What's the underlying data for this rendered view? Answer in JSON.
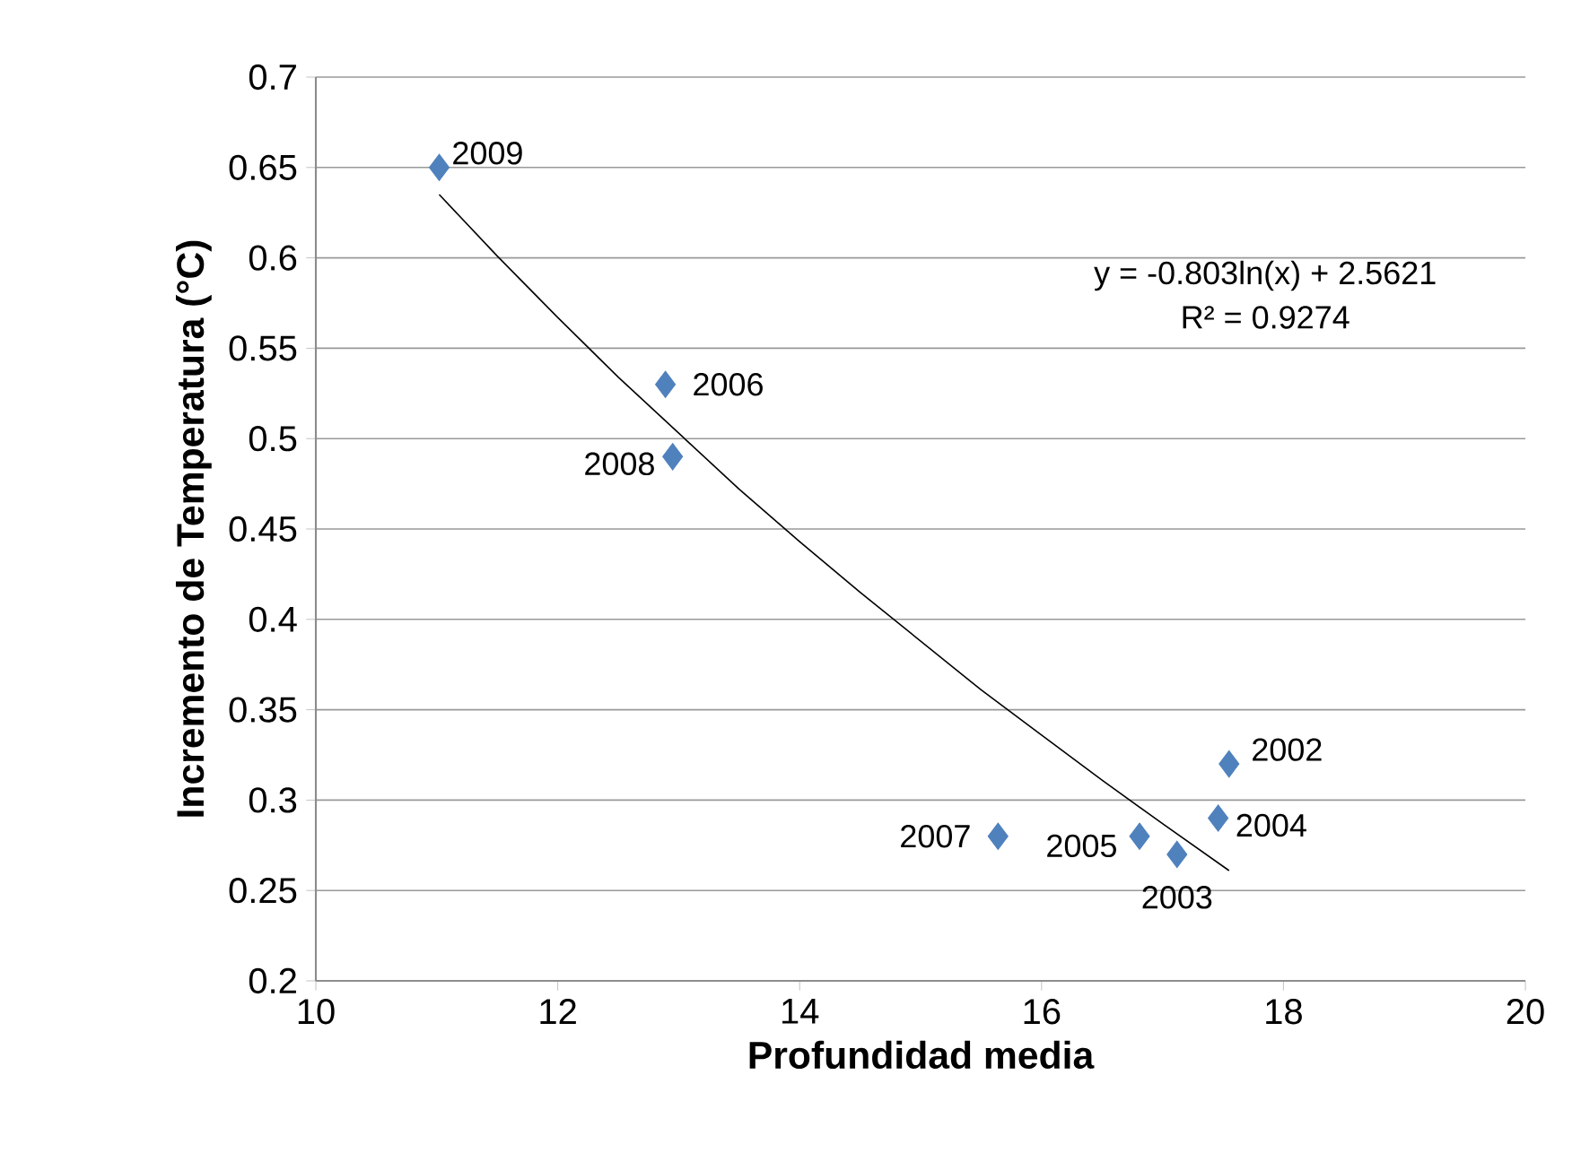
{
  "chart_data": {
    "type": "scatter",
    "xlabel": "Profundidad media",
    "ylabel": "Incremento de Temperatura (°C)",
    "xlim": [
      10,
      20
    ],
    "ylim": [
      0.2,
      0.7
    ],
    "xticks": [
      10,
      12,
      14,
      16,
      18,
      20
    ],
    "yticks": [
      0.2,
      0.25,
      0.3,
      0.35,
      0.4,
      0.45,
      0.5,
      0.55,
      0.6,
      0.65,
      0.7
    ],
    "grid": "y",
    "series": [
      {
        "marker": "diamond",
        "color": "#4f81bd",
        "x": [
          11.02,
          12.89,
          12.95,
          15.64,
          16.81,
          17.12,
          17.46,
          17.55
        ],
        "values": [
          0.65,
          0.53,
          0.49,
          0.28,
          0.28,
          0.27,
          0.29,
          0.32
        ]
      },
      {
        "type": "line",
        "color": "#000000",
        "line_style": "solid",
        "x": [
          11.02,
          11.5,
          12,
          12.5,
          13,
          13.5,
          14,
          14.5,
          15,
          15.5,
          16,
          16.5,
          17,
          17.55
        ],
        "values": [
          0.635,
          0.601,
          0.567,
          0.534,
          0.503,
          0.472,
          0.443,
          0.415,
          0.388,
          0.361,
          0.336,
          0.311,
          0.287,
          0.261
        ]
      }
    ],
    "annotations": [
      {
        "text": "2009",
        "x": 11.02,
        "y": 0.65
      },
      {
        "text": "2006",
        "x": 12.89,
        "y": 0.53
      },
      {
        "text": "2008",
        "x": 12.95,
        "y": 0.49
      },
      {
        "text": "2007",
        "x": 15.64,
        "y": 0.28
      },
      {
        "text": "2005",
        "x": 16.81,
        "y": 0.28
      },
      {
        "text": "2003",
        "x": 17.12,
        "y": 0.27
      },
      {
        "text": "2004",
        "x": 17.46,
        "y": 0.29
      },
      {
        "text": "2002",
        "x": 17.55,
        "y": 0.32
      },
      "y = -0.803ln(x) + 2.5621",
      "R² = 0.9274"
    ]
  }
}
